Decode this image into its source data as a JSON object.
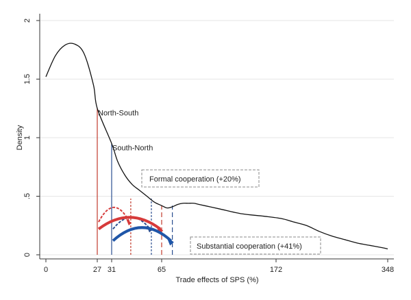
{
  "chart_data": {
    "type": "line",
    "title": "",
    "xlabel": "Trade effects of SPS (%)",
    "ylabel": "Density",
    "xlim": [
      0,
      348
    ],
    "ylim": [
      0,
      2
    ],
    "x_ticks": [
      0,
      27,
      31,
      65,
      172,
      348
    ],
    "y_ticks": [
      "0",
      ".5",
      "1",
      "1.5",
      "2"
    ],
    "y_tick_values": [
      0,
      0.5,
      1,
      1.5,
      2
    ],
    "grid": true,
    "series": [
      {
        "x": [
          0,
          5,
          10,
          15,
          20,
          25,
          27,
          31,
          35,
          40,
          45,
          50,
          55,
          60,
          65,
          70,
          75,
          80,
          85,
          90,
          95,
          100,
          110,
          120,
          140,
          160,
          180,
          200,
          220,
          240,
          260,
          280,
          300,
          320,
          340,
          348
        ],
        "y": [
          1.52,
          1.7,
          1.79,
          1.8,
          1.72,
          1.45,
          1.25,
          0.95,
          0.8,
          0.68,
          0.6,
          0.55,
          0.5,
          0.45,
          0.42,
          0.4,
          0.41,
          0.43,
          0.44,
          0.44,
          0.44,
          0.43,
          0.41,
          0.39,
          0.35,
          0.33,
          0.31,
          0.28,
          0.25,
          0.2,
          0.16,
          0.13,
          0.1,
          0.08,
          0.06,
          0.05
        ]
      }
    ],
    "vertical_lines": [
      {
        "x": 27,
        "y": 1.25,
        "color": "#c0392b",
        "style": "solid"
      },
      {
        "x": 31,
        "y": 0.95,
        "color": "#2a4d8f",
        "style": "solid"
      },
      {
        "x": 44,
        "y": 0.48,
        "color": "#c0392b",
        "style": "dashed"
      },
      {
        "x": 58,
        "y": 0.48,
        "color": "#2a4d8f",
        "style": "dashed"
      },
      {
        "x": 65,
        "y": 0.42,
        "color": "#c0392b",
        "style": "longdash"
      },
      {
        "x": 75,
        "y": 0.42,
        "color": "#2a4d8f",
        "style": "longdash"
      }
    ],
    "arrows": [
      {
        "x1": 27,
        "x2": 44,
        "y": 0.28,
        "peak": 0.48,
        "color": "#d63a3a",
        "style": "dashed"
      },
      {
        "x1": 31,
        "x2": 58,
        "y": 0.22,
        "peak": 0.38,
        "color": "#2a4d8f",
        "style": "dashed"
      },
      {
        "x1": 27,
        "x2": 65,
        "y": 0.22,
        "peak": 0.38,
        "color": "#d63a3a",
        "style": "solid"
      },
      {
        "x1": 31,
        "x2": 75,
        "y": 0.12,
        "peak": 0.3,
        "color": "#1f56a8",
        "style": "solid"
      }
    ],
    "annotations": {
      "north_south": "North-South",
      "south_north": "South-North",
      "formal": "Formal cooperation (+20%)",
      "substantial": "Substantial cooperation (+41%)"
    },
    "colors": {
      "curve": "#111111",
      "grid": "#e6e6e6",
      "red": "#c0392b",
      "blue": "#2a4d8f",
      "box_border": "#888888"
    }
  }
}
